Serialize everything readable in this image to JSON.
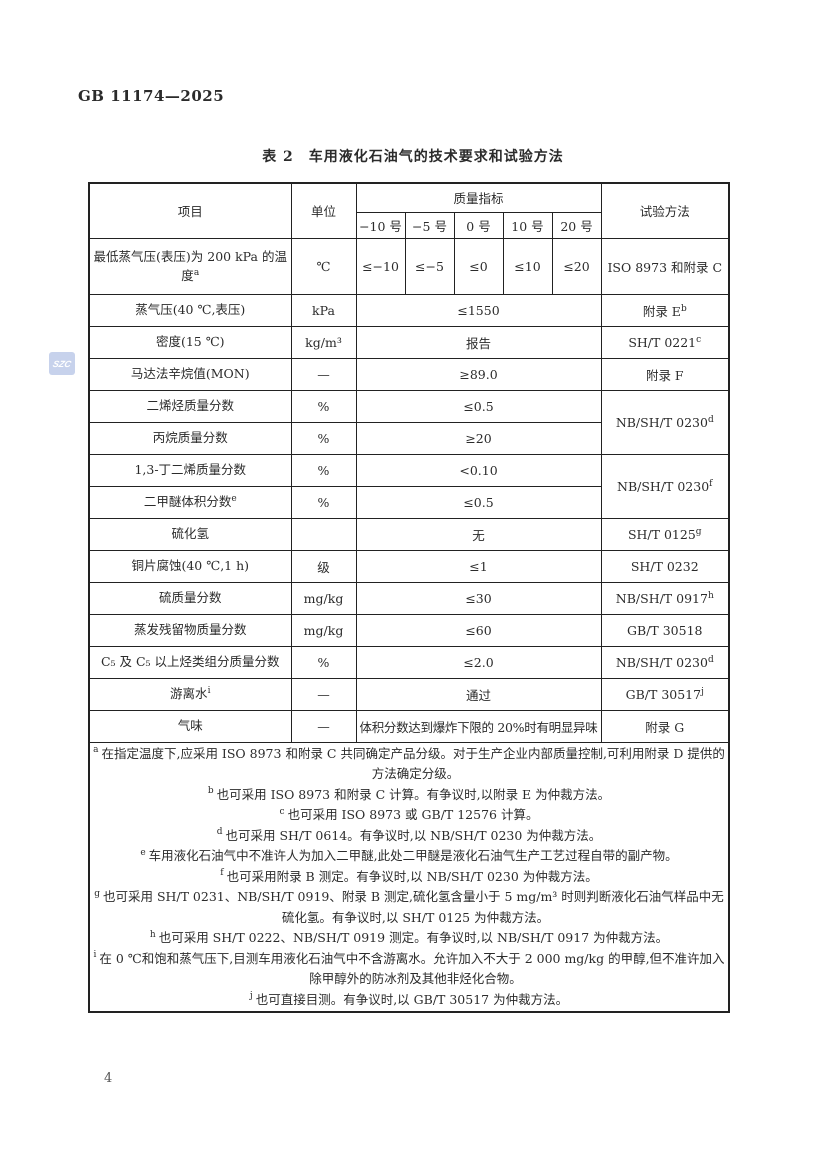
{
  "page": {
    "doc_number": "GB 11174—2025",
    "page_number": "4",
    "watermark_text": "SZC"
  },
  "table": {
    "title": "表 2　车用液化石油气的技术要求和试验方法",
    "header": {
      "item": "项目",
      "unit": "单位",
      "quality_index": "质量指标",
      "test_method": "试验方法",
      "grades": [
        "−10 号",
        "−5 号",
        "0 号",
        "10 号",
        "20 号"
      ]
    },
    "rows": [
      {
        "item": "最低蒸气压(表压)为 200 kPa 的温度",
        "item_sup": "a",
        "unit": "℃",
        "values": [
          "≤−10",
          "≤−5",
          "≤0",
          "≤10",
          "≤20"
        ],
        "method": "ISO 8973 和附录 C",
        "tall": true
      },
      {
        "item": "蒸气压(40 ℃,表压)",
        "unit": "kPa",
        "value": "≤1550",
        "method": "附录 E",
        "method_sup": "b"
      },
      {
        "item": "密度(15 ℃)",
        "unit": "kg/m³",
        "value": "报告",
        "method": "SH/T 0221",
        "method_sup": "c"
      },
      {
        "item": "马达法辛烷值(MON)",
        "unit": "—",
        "value": "≥89.0",
        "method": "附录 F"
      },
      {
        "item": "二烯烃质量分数",
        "unit": "%",
        "value": "≤0.5",
        "method": "NB/SH/T 0230",
        "method_sup": "d",
        "method_rowspan": 2
      },
      {
        "item": "丙烷质量分数",
        "unit": "%",
        "value": "≥20",
        "method": null
      },
      {
        "item": "1,3-丁二烯质量分数",
        "unit": "%",
        "value": "<0.10",
        "method": "NB/SH/T 0230",
        "method_sup": "f",
        "method_rowspan": 2
      },
      {
        "item": "二甲醚体积分数",
        "item_sup": "e",
        "unit": "%",
        "value": "≤0.5",
        "method": null
      },
      {
        "item": "硫化氢",
        "unit": "",
        "value": "无",
        "method": "SH/T 0125",
        "method_sup": "g"
      },
      {
        "item": "铜片腐蚀(40 ℃,1 h)",
        "unit": "级",
        "value": "≤1",
        "method": "SH/T 0232"
      },
      {
        "item": "硫质量分数",
        "unit": "mg/kg",
        "value": "≤30",
        "method": "NB/SH/T 0917",
        "method_sup": "h"
      },
      {
        "item": "蒸发残留物质量分数",
        "unit": "mg/kg",
        "value": "≤60",
        "method": "GB/T 30518"
      },
      {
        "item": "C₅ 及 C₅ 以上烃类组分质量分数",
        "unit": "%",
        "value": "≤2.0",
        "method": "NB/SH/T 0230",
        "method_sup": "d"
      },
      {
        "item": "游离水",
        "item_sup": "i",
        "unit": "—",
        "value": "通过",
        "method": "GB/T 30517",
        "method_sup": "j"
      },
      {
        "item": "气味",
        "unit": "—",
        "value": "体积分数达到爆炸下限的 20%时有明显异味",
        "value_align": "left",
        "method": "附录 G"
      }
    ],
    "footnotes": [
      {
        "letter": "a",
        "text": "在指定温度下,应采用 ISO 8973 和附录 C 共同确定产品分级。对于生产企业内部质量控制,可利用附录 D 提供的方法确定分级。"
      },
      {
        "letter": "b",
        "text": "也可采用 ISO 8973 和附录 C 计算。有争议时,以附录 E 为仲裁方法。"
      },
      {
        "letter": "c",
        "text": "也可采用 ISO 8973 或 GB/T 12576 计算。"
      },
      {
        "letter": "d",
        "text": "也可采用 SH/T 0614。有争议时,以 NB/SH/T 0230 为仲裁方法。"
      },
      {
        "letter": "e",
        "text": "车用液化石油气中不准许人为加入二甲醚,此处二甲醚是液化石油气生产工艺过程自带的副产物。"
      },
      {
        "letter": "f",
        "text": "也可采用附录 B 测定。有争议时,以 NB/SH/T 0230 为仲裁方法。"
      },
      {
        "letter": "g",
        "text": "也可采用 SH/T 0231、NB/SH/T 0919、附录 B 测定,硫化氢含量小于 5 mg/m³ 时则判断液化石油气样品中无硫化氢。有争议时,以 SH/T 0125 为仲裁方法。"
      },
      {
        "letter": "h",
        "text": "也可采用 SH/T 0222、NB/SH/T 0919 测定。有争议时,以 NB/SH/T 0917 为仲裁方法。"
      },
      {
        "letter": "i",
        "text": "在 0 ℃和饱和蒸气压下,目测车用液化石油气中不含游离水。允许加入不大于 2 000 mg/kg 的甲醇,但不准许加入除甲醇外的防冰剂及其他非烃化合物。"
      },
      {
        "letter": "j",
        "text": "也可直接目测。有争议时,以 GB/T 30517 为仲裁方法。"
      }
    ]
  }
}
